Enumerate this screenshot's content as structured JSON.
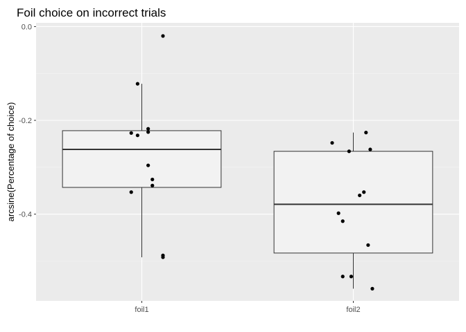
{
  "chart_data": {
    "type": "boxplot",
    "title": "Foil choice on incorrect trials",
    "xlabel": "",
    "ylabel": "arcsine(Percentage of choice)",
    "categories": [
      "foil1",
      "foil2"
    ],
    "y_ticks": [
      0.0,
      -0.2,
      -0.4
    ],
    "y_tick_labels": [
      "0.0",
      "-0.2",
      "-0.4"
    ],
    "ylim": [
      -0.585,
      0.008
    ],
    "boxes": [
      {
        "category": "foil1",
        "lower_whisker": -0.492,
        "q1": -0.343,
        "median": -0.262,
        "q3": -0.222,
        "upper_whisker": -0.122
      },
      {
        "category": "foil2",
        "lower_whisker": -0.559,
        "q1": -0.483,
        "median": -0.379,
        "q3": -0.266,
        "upper_whisker": -0.226
      }
    ],
    "points": [
      {
        "category": "foil1",
        "jitter": 0.1,
        "y": -0.02
      },
      {
        "category": "foil1",
        "jitter": -0.02,
        "y": -0.122
      },
      {
        "category": "foil1",
        "jitter": 0.03,
        "y": -0.218
      },
      {
        "category": "foil1",
        "jitter": 0.03,
        "y": -0.225
      },
      {
        "category": "foil1",
        "jitter": -0.05,
        "y": -0.227
      },
      {
        "category": "foil1",
        "jitter": -0.02,
        "y": -0.232
      },
      {
        "category": "foil1",
        "jitter": 0.03,
        "y": -0.296
      },
      {
        "category": "foil1",
        "jitter": 0.05,
        "y": -0.326
      },
      {
        "category": "foil1",
        "jitter": 0.05,
        "y": -0.339
      },
      {
        "category": "foil1",
        "jitter": -0.05,
        "y": -0.353
      },
      {
        "category": "foil1",
        "jitter": 0.1,
        "y": -0.488
      },
      {
        "category": "foil1",
        "jitter": 0.1,
        "y": -0.492
      },
      {
        "category": "foil2",
        "jitter": -0.1,
        "y": -0.248
      },
      {
        "category": "foil2",
        "jitter": 0.06,
        "y": -0.226
      },
      {
        "category": "foil2",
        "jitter": 0.08,
        "y": -0.262
      },
      {
        "category": "foil2",
        "jitter": -0.02,
        "y": -0.266
      },
      {
        "category": "foil2",
        "jitter": 0.05,
        "y": -0.353
      },
      {
        "category": "foil2",
        "jitter": 0.03,
        "y": -0.36
      },
      {
        "category": "foil2",
        "jitter": -0.07,
        "y": -0.398
      },
      {
        "category": "foil2",
        "jitter": -0.05,
        "y": -0.415
      },
      {
        "category": "foil2",
        "jitter": 0.07,
        "y": -0.466
      },
      {
        "category": "foil2",
        "jitter": -0.05,
        "y": -0.533
      },
      {
        "category": "foil2",
        "jitter": -0.01,
        "y": -0.533
      },
      {
        "category": "foil2",
        "jitter": 0.09,
        "y": -0.559
      }
    ],
    "grid": true,
    "colors": {
      "panel_background": "#ebebeb",
      "grid_major": "#ffffff",
      "grid_minor": "#f5f5f5",
      "box_fill": "#f2f2f2",
      "box_stroke": "#333333",
      "point": "#000000"
    }
  }
}
